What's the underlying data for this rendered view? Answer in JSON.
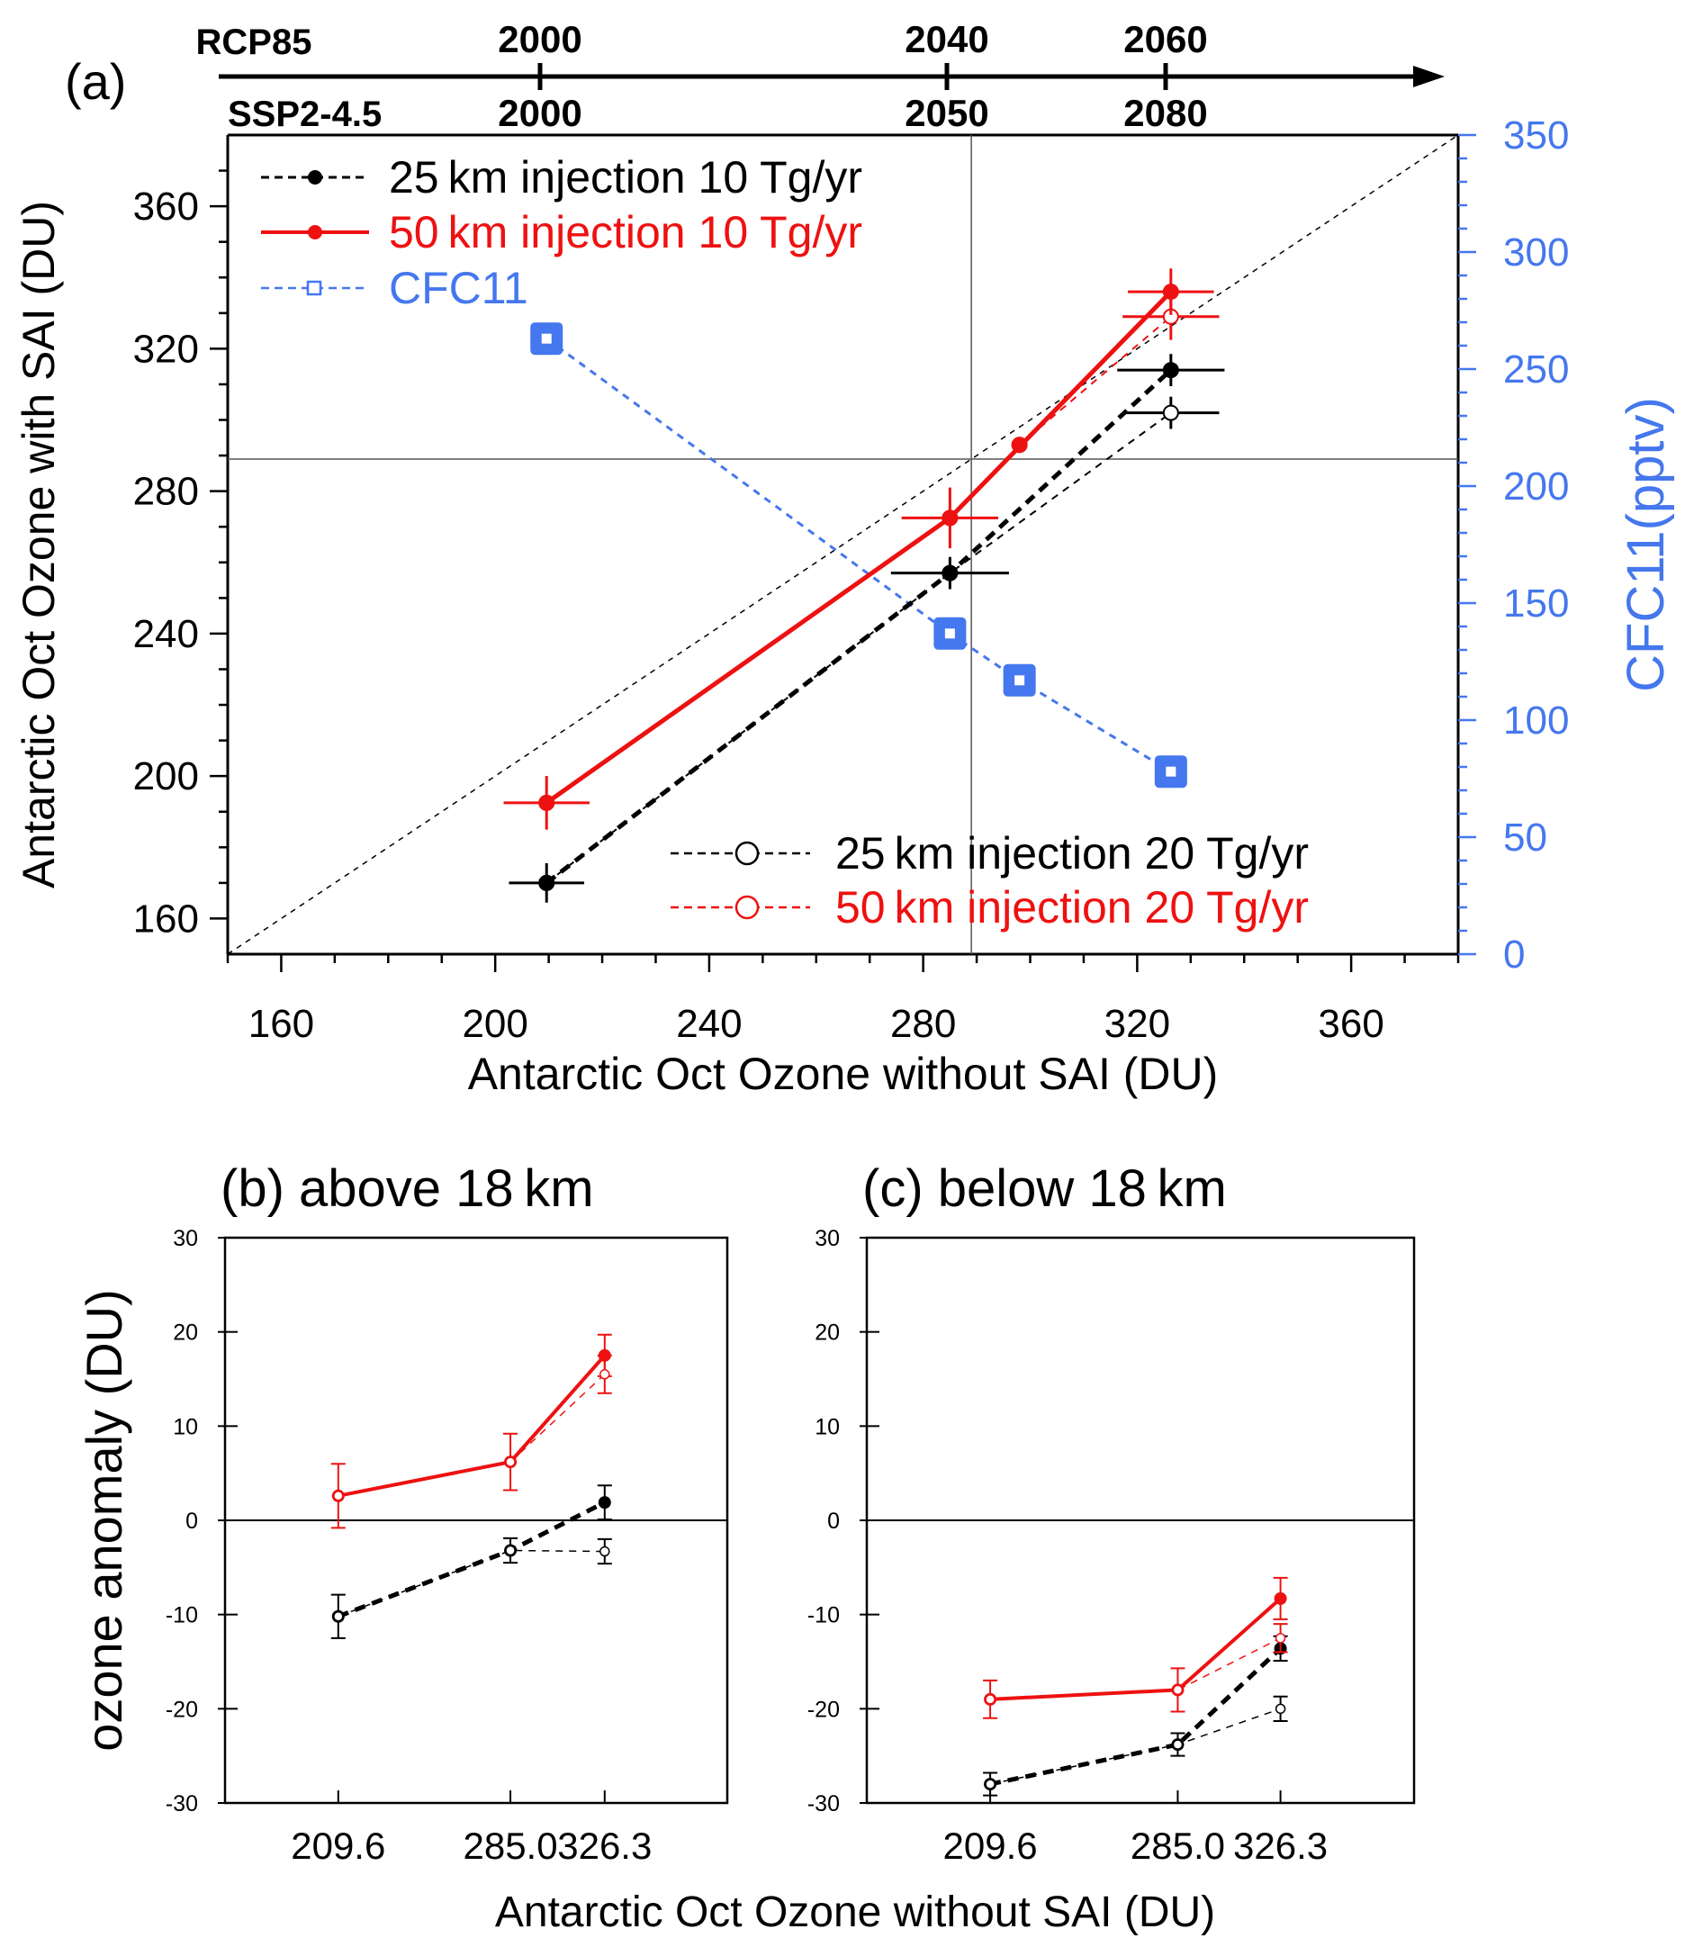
{
  "figure": {
    "timeline": {
      "rcp_label": "RCP85",
      "ssp_label": "SSP2-4.5",
      "rcp_years": [
        "2000",
        "2040",
        "2060"
      ],
      "ssp_years": [
        "2000",
        "2050",
        "2080"
      ]
    }
  },
  "colors": {
    "black": "#000000",
    "red": "#ee1111",
    "blue": "#4577ee",
    "grid": "#555555"
  },
  "chart_data": [
    {
      "id": "a",
      "type": "line",
      "panel_label": "(a)",
      "xlabel": "Antarctic Oct Ozone without SAI (DU)",
      "ylabel": "Antarctic Oct Ozone with SAI (DU)",
      "y2label": "CFC11(pptv)",
      "xlim": [
        150,
        380
      ],
      "ylim": [
        150,
        380
      ],
      "y2lim": [
        0,
        350
      ],
      "xticks": [
        160,
        200,
        240,
        280,
        320,
        360
      ],
      "yticks": [
        160,
        200,
        240,
        280,
        320,
        360
      ],
      "y2ticks": [
        0,
        50,
        100,
        150,
        200,
        250,
        300,
        350
      ],
      "ref_lines": {
        "one_to_one": true,
        "vline_x": 289,
        "hline_y": 289
      },
      "legend_top": [
        {
          "label": "25 km injection 10 Tg/yr",
          "series": "b10"
        },
        {
          "label": "50 km injection 10 Tg/yr",
          "series": "r10"
        },
        {
          "label": "CFC11",
          "series": "cfc"
        }
      ],
      "legend_bottom": [
        {
          "label": "25 km injection 20 Tg/yr",
          "series": "b20"
        },
        {
          "label": "50 km injection 20 Tg/yr",
          "series": "r20"
        }
      ],
      "series": [
        {
          "id": "b10",
          "name": "25 km injection 10 Tg/yr",
          "color": "#000000",
          "dash": "dashed",
          "width": 5,
          "marker": "filled",
          "x": [
            209.6,
            285.0,
            326.3
          ],
          "y": [
            170,
            257,
            314
          ],
          "xerr": [
            4,
            8,
            7
          ],
          "yerr": [
            3,
            2,
            2
          ]
        },
        {
          "id": "r10",
          "name": "50 km injection 10 Tg/yr",
          "color": "#ee1111",
          "dash": "solid",
          "width": 5,
          "marker": "filled",
          "x": [
            209.6,
            285.0,
            326.3
          ],
          "y": [
            192.5,
            272.5,
            336
          ],
          "xerr": [
            5,
            6,
            5
          ],
          "yerr": [
            5,
            6,
            4
          ]
        },
        {
          "id": "b20",
          "name": "25 km injection 20 Tg/yr",
          "color": "#000000",
          "dash": "dashed",
          "width": 2,
          "marker": "open",
          "x": [
            209.6,
            285.0,
            326.3
          ],
          "y": [
            170,
            257,
            302
          ],
          "xerr": [
            0,
            0,
            6
          ],
          "yerr": [
            0,
            0,
            2
          ]
        },
        {
          "id": "r20",
          "name": "50 km injection 20 Tg/yr",
          "color": "#ee1111",
          "dash": "dashed",
          "width": 2,
          "marker": "open",
          "x": [
            209.6,
            285.0,
            298,
            326.3
          ],
          "y": [
            192.5,
            272.5,
            293,
            329
          ],
          "xerr": [
            0,
            0,
            0,
            6
          ],
          "yerr": [
            0,
            0,
            0,
            4
          ]
        },
        {
          "id": "cfc",
          "name": "CFC11",
          "color": "#4577ee",
          "dash": "dashed",
          "width": 3,
          "marker": "square",
          "axis": "right",
          "x": [
            209.6,
            285.0,
            298,
            326.3
          ],
          "y": [
            263,
            137,
            117,
            78
          ]
        },
        {
          "id": "r10_mid",
          "color": "#ee1111",
          "dash": "solid",
          "width": 5,
          "marker": "filled",
          "x": [
            298
          ],
          "y": [
            293
          ],
          "xerr": [
            0
          ],
          "yerr": [
            0
          ]
        }
      ]
    },
    {
      "id": "b",
      "type": "line",
      "title": "(b) above 18 km",
      "ylabel": "ozone anomaly (DU)",
      "ylim": [
        -30,
        30
      ],
      "yticks": [
        -30,
        -20,
        -10,
        0,
        10,
        20,
        30
      ],
      "categories": [
        "209.6",
        "285.0",
        "326.3"
      ],
      "x": [
        209.6,
        285.0,
        326.3
      ],
      "xlim": [
        160,
        380
      ],
      "zero_line": true,
      "series": [
        {
          "name": "25 km injection 10 Tg/yr",
          "color": "#000000",
          "dash": "dashed",
          "width": 5,
          "marker": "filled",
          "values": [
            -10.2,
            -3.2,
            1.9
          ],
          "err": [
            2.3,
            1.3,
            1.8
          ]
        },
        {
          "name": "25 km injection 20 Tg/yr",
          "color": "#000000",
          "dash": "dashed",
          "width": 1.5,
          "marker": "open",
          "values": [
            -10.2,
            -3.2,
            -3.3
          ],
          "err": [
            0,
            0,
            1.3
          ]
        },
        {
          "name": "50 km injection 10 Tg/yr",
          "color": "#ee1111",
          "dash": "solid",
          "width": 4,
          "marker": "filled",
          "values": [
            2.6,
            6.2,
            17.5
          ],
          "err": [
            3.4,
            3.0,
            2.2
          ]
        },
        {
          "name": "50 km injection 20 Tg/yr",
          "color": "#ee1111",
          "dash": "dashed",
          "width": 1.5,
          "marker": "open",
          "values": [
            2.6,
            6.2,
            15.5
          ],
          "err": [
            0,
            0,
            2.0
          ]
        }
      ]
    },
    {
      "id": "c",
      "type": "line",
      "title": "(c) below 18 km",
      "ylim": [
        -30,
        30
      ],
      "yticks": [
        -30,
        -20,
        -10,
        0,
        10,
        20,
        30
      ],
      "categories": [
        "209.6",
        "285.0",
        "326.3"
      ],
      "x": [
        209.6,
        285.0,
        326.3
      ],
      "xlim": [
        160,
        380
      ],
      "zero_line": true,
      "series": [
        {
          "name": "25 km injection 10 Tg/yr",
          "color": "#000000",
          "dash": "dashed",
          "width": 5,
          "marker": "filled",
          "values": [
            -28.0,
            -23.8,
            -13.6
          ],
          "err": [
            1.2,
            1.2,
            1.3
          ]
        },
        {
          "name": "25 km injection 20 Tg/yr",
          "color": "#000000",
          "dash": "dashed",
          "width": 1.5,
          "marker": "open",
          "values": [
            -28.0,
            -23.8,
            -20.0
          ],
          "err": [
            0,
            0,
            1.3
          ]
        },
        {
          "name": "50 km injection 10 Tg/yr",
          "color": "#ee1111",
          "dash": "solid",
          "width": 4,
          "marker": "filled",
          "values": [
            -19.0,
            -18.0,
            -8.3
          ],
          "err": [
            2.0,
            2.3,
            2.2
          ]
        },
        {
          "name": "50 km injection 20 Tg/yr",
          "color": "#ee1111",
          "dash": "dashed",
          "width": 1.5,
          "marker": "open",
          "values": [
            -19.0,
            -18.0,
            -12.5
          ],
          "err": [
            0,
            0,
            1.5
          ]
        }
      ]
    }
  ],
  "bottom_xlabel": "Antarctic Oct Ozone without SAI (DU)"
}
